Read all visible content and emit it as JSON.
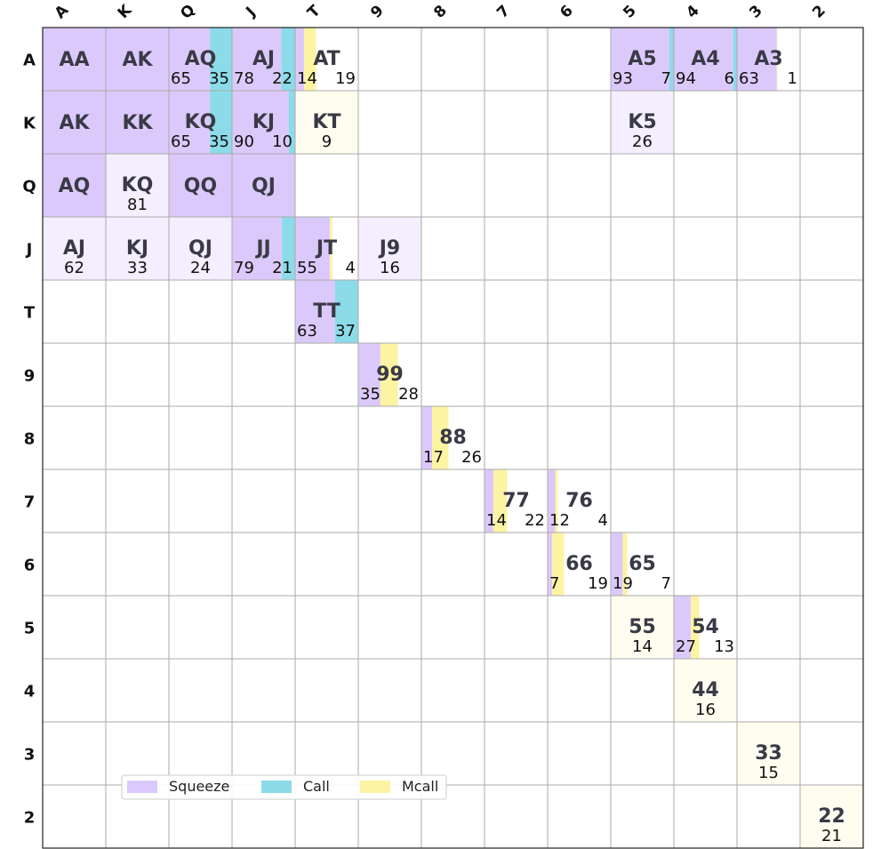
{
  "chart_data": {
    "type": "heatmap",
    "title": "",
    "col_labels": [
      "A",
      "K",
      "Q",
      "J",
      "T",
      "9",
      "8",
      "7",
      "6",
      "5",
      "4",
      "3",
      "2"
    ],
    "row_labels": [
      "A",
      "K",
      "Q",
      "J",
      "T",
      "9",
      "8",
      "7",
      "6",
      "5",
      "4",
      "3",
      "2"
    ],
    "legend": {
      "position": "bottom-left",
      "items": [
        {
          "key": "squeeze",
          "label": "Squeeze",
          "color": "#dcc9fb"
        },
        {
          "key": "call",
          "label": "Call",
          "color": "#8cdbe8"
        },
        {
          "key": "mcall",
          "label": "Mcall",
          "color": "#fdf4a3"
        }
      ]
    },
    "colors": {
      "squeeze": "#dcc9fb",
      "call": "#8cdbe8",
      "mcall": "#fdf4a3",
      "squeeze_faded": "#f4eefe",
      "mcall_faded": "#fffdef",
      "grid": "#aaaaaa",
      "hand_text": "#3a3a46"
    },
    "cells": [
      {
        "row": 0,
        "col": 0,
        "hand": "AA",
        "squeeze": 100,
        "call": 0,
        "mcall": 0,
        "labels": []
      },
      {
        "row": 0,
        "col": 1,
        "hand": "AK",
        "squeeze": 100,
        "call": 0,
        "mcall": 0,
        "labels": []
      },
      {
        "row": 0,
        "col": 2,
        "hand": "AQ",
        "squeeze": 65,
        "call": 35,
        "mcall": 0,
        "labels": [
          "65",
          "35"
        ]
      },
      {
        "row": 0,
        "col": 3,
        "hand": "AJ",
        "squeeze": 78,
        "call": 22,
        "mcall": 0,
        "labels": [
          "78",
          "22"
        ]
      },
      {
        "row": 0,
        "col": 4,
        "hand": "AT",
        "squeeze": 14,
        "call": 0,
        "mcall": 19,
        "labels": [
          "14",
          "19"
        ]
      },
      {
        "row": 0,
        "col": 9,
        "hand": "A5",
        "squeeze": 93,
        "call": 7,
        "mcall": 0,
        "labels": [
          "93",
          "7"
        ]
      },
      {
        "row": 0,
        "col": 10,
        "hand": "A4",
        "squeeze": 94,
        "call": 6,
        "mcall": 0,
        "labels": [
          "94",
          "6"
        ]
      },
      {
        "row": 0,
        "col": 11,
        "hand": "A3",
        "squeeze": 63,
        "call": 0,
        "mcall": 1,
        "labels": [
          "63",
          "1"
        ]
      },
      {
        "row": 1,
        "col": 0,
        "hand": "AK",
        "squeeze": 100,
        "call": 0,
        "mcall": 0,
        "labels": []
      },
      {
        "row": 1,
        "col": 1,
        "hand": "KK",
        "squeeze": 100,
        "call": 0,
        "mcall": 0,
        "labels": []
      },
      {
        "row": 1,
        "col": 2,
        "hand": "KQ",
        "squeeze": 65,
        "call": 35,
        "mcall": 0,
        "labels": [
          "65",
          "35"
        ]
      },
      {
        "row": 1,
        "col": 3,
        "hand": "KJ",
        "squeeze": 90,
        "call": 10,
        "mcall": 0,
        "labels": [
          "90",
          "10"
        ]
      },
      {
        "row": 1,
        "col": 4,
        "hand": "KT",
        "squeeze": 0,
        "call": 0,
        "mcall": 9,
        "labels": [
          "9"
        ]
      },
      {
        "row": 1,
        "col": 9,
        "hand": "K5",
        "squeeze": 26,
        "call": 0,
        "mcall": 0,
        "labels": [
          "26"
        ]
      },
      {
        "row": 2,
        "col": 0,
        "hand": "AQ",
        "squeeze": 100,
        "call": 0,
        "mcall": 0,
        "labels": []
      },
      {
        "row": 2,
        "col": 1,
        "hand": "KQ",
        "squeeze": 81,
        "call": 0,
        "mcall": 0,
        "labels": [
          "81"
        ]
      },
      {
        "row": 2,
        "col": 2,
        "hand": "QQ",
        "squeeze": 100,
        "call": 0,
        "mcall": 0,
        "labels": []
      },
      {
        "row": 2,
        "col": 3,
        "hand": "QJ",
        "squeeze": 100,
        "call": 0,
        "mcall": 0,
        "labels": []
      },
      {
        "row": 3,
        "col": 0,
        "hand": "AJ",
        "squeeze": 62,
        "call": 0,
        "mcall": 0,
        "labels": [
          "62"
        ]
      },
      {
        "row": 3,
        "col": 1,
        "hand": "KJ",
        "squeeze": 33,
        "call": 0,
        "mcall": 0,
        "labels": [
          "33"
        ]
      },
      {
        "row": 3,
        "col": 2,
        "hand": "QJ",
        "squeeze": 24,
        "call": 0,
        "mcall": 0,
        "labels": [
          "24"
        ]
      },
      {
        "row": 3,
        "col": 3,
        "hand": "JJ",
        "squeeze": 79,
        "call": 21,
        "mcall": 0,
        "labels": [
          "79",
          "21"
        ]
      },
      {
        "row": 3,
        "col": 4,
        "hand": "JT",
        "squeeze": 55,
        "call": 0,
        "mcall": 4,
        "labels": [
          "55",
          "4"
        ]
      },
      {
        "row": 3,
        "col": 5,
        "hand": "J9",
        "squeeze": 16,
        "call": 0,
        "mcall": 0,
        "labels": [
          "16"
        ]
      },
      {
        "row": 4,
        "col": 4,
        "hand": "TT",
        "squeeze": 63,
        "call": 37,
        "mcall": 0,
        "labels": [
          "63",
          "37"
        ]
      },
      {
        "row": 5,
        "col": 5,
        "hand": "99",
        "squeeze": 35,
        "call": 0,
        "mcall": 28,
        "labels": [
          "35",
          "28"
        ]
      },
      {
        "row": 6,
        "col": 6,
        "hand": "88",
        "squeeze": 17,
        "call": 0,
        "mcall": 26,
        "labels": [
          "17",
          "26"
        ]
      },
      {
        "row": 7,
        "col": 7,
        "hand": "77",
        "squeeze": 14,
        "call": 0,
        "mcall": 22,
        "labels": [
          "14",
          "22"
        ]
      },
      {
        "row": 7,
        "col": 8,
        "hand": "76",
        "squeeze": 12,
        "call": 0,
        "mcall": 4,
        "labels": [
          "12",
          "4"
        ]
      },
      {
        "row": 8,
        "col": 8,
        "hand": "66",
        "squeeze": 7,
        "call": 0,
        "mcall": 19,
        "labels": [
          "7",
          "19"
        ]
      },
      {
        "row": 8,
        "col": 9,
        "hand": "65",
        "squeeze": 19,
        "call": 0,
        "mcall": 7,
        "labels": [
          "19",
          "7"
        ]
      },
      {
        "row": 9,
        "col": 9,
        "hand": "55",
        "squeeze": 0,
        "call": 0,
        "mcall": 14,
        "labels": [
          "14"
        ]
      },
      {
        "row": 9,
        "col": 10,
        "hand": "54",
        "squeeze": 27,
        "call": 0,
        "mcall": 13,
        "labels": [
          "27",
          "13"
        ]
      },
      {
        "row": 10,
        "col": 10,
        "hand": "44",
        "squeeze": 0,
        "call": 0,
        "mcall": 16,
        "labels": [
          "16"
        ]
      },
      {
        "row": 11,
        "col": 11,
        "hand": "33",
        "squeeze": 0,
        "call": 0,
        "mcall": 15,
        "labels": [
          "15"
        ]
      },
      {
        "row": 12,
        "col": 12,
        "hand": "22",
        "squeeze": 0,
        "call": 0,
        "mcall": 21,
        "labels": [
          "21"
        ]
      }
    ]
  }
}
